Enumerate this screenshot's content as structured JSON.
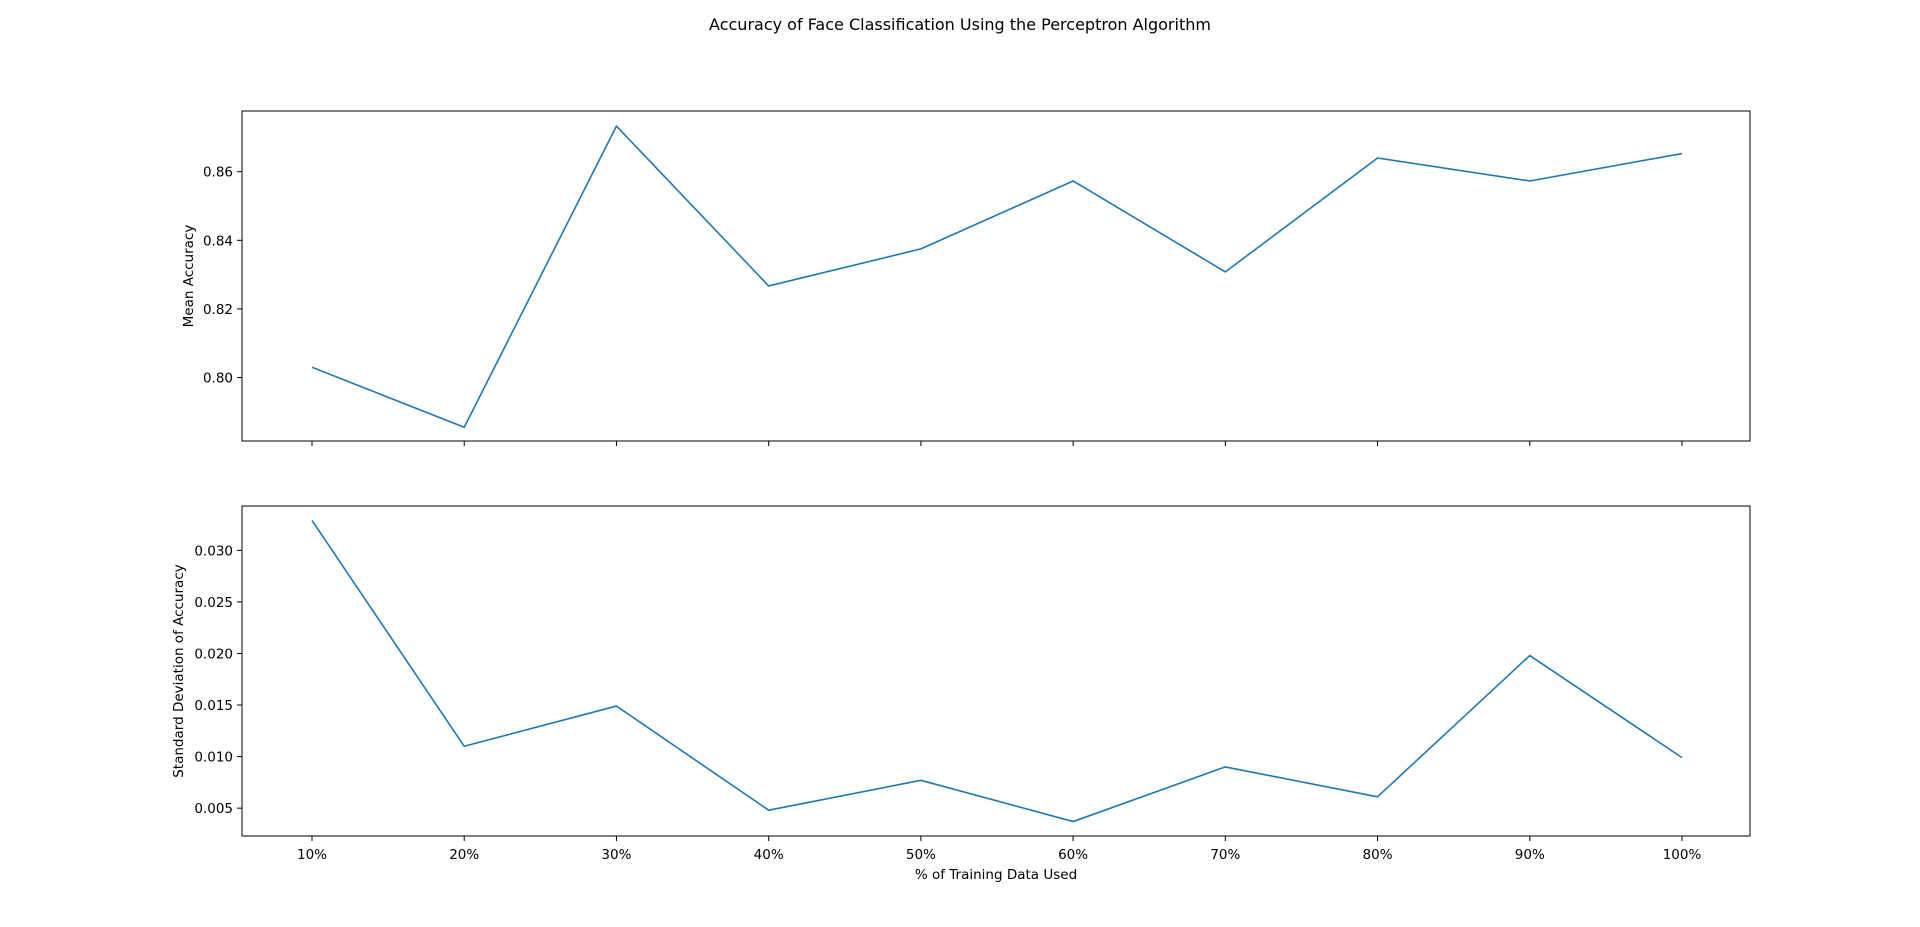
{
  "figure": {
    "title": "Accuracy of Face Classification Using the Perceptron Algorithm"
  },
  "chart_data": [
    {
      "type": "line",
      "title": "",
      "xlabel": "",
      "ylabel": "Mean Accuracy",
      "x": [
        "10%",
        "20%",
        "30%",
        "40%",
        "50%",
        "60%",
        "70%",
        "80%",
        "90%",
        "100%"
      ],
      "series": [
        {
          "values": [
            0.803,
            0.7855,
            0.8733,
            0.8267,
            0.8375,
            0.8573,
            0.8308,
            0.864,
            0.8573,
            0.8653
          ],
          "color": "#1f77b4"
        }
      ],
      "ylim": [
        0.7815,
        0.8777
      ],
      "yticks": [
        0.8,
        0.82,
        0.84,
        0.86
      ],
      "ytick_labels": [
        "0.80",
        "0.82",
        "0.84",
        "0.86"
      ],
      "show_x_tick_labels": false,
      "grid": false,
      "legend": "none"
    },
    {
      "type": "line",
      "title": "",
      "xlabel": "% of Training Data Used",
      "ylabel": "Standard Deviation of Accuracy",
      "x": [
        "10%",
        "20%",
        "30%",
        "40%",
        "50%",
        "60%",
        "70%",
        "80%",
        "90%",
        "100%"
      ],
      "series": [
        {
          "values": [
            0.0329,
            0.011,
            0.0149,
            0.0048,
            0.0077,
            0.0037,
            0.009,
            0.0061,
            0.0198,
            0.0099
          ],
          "color": "#1f77b4"
        }
      ],
      "ylim": [
        0.0023,
        0.0343
      ],
      "yticks": [
        0.005,
        0.01,
        0.015,
        0.02,
        0.025,
        0.03
      ],
      "ytick_labels": [
        "0.005",
        "0.010",
        "0.015",
        "0.020",
        "0.025",
        "0.030"
      ],
      "show_x_tick_labels": true,
      "grid": false,
      "legend": "none"
    }
  ]
}
